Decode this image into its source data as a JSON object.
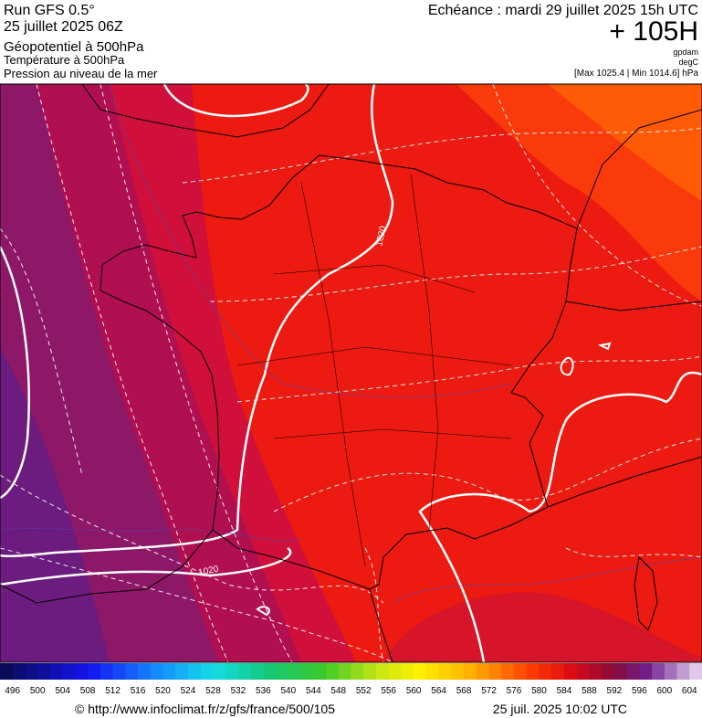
{
  "header": {
    "run": "Run GFS 0.5°",
    "date": "25 juillet 2025 06Z",
    "title": "Géopotentiel à 500hPa",
    "subtitle1": "Température à 500hPa",
    "subtitle2": "Pression au niveau de la mer",
    "echeance": "Echéance : mardi 29 juillet 2025 15h UTC",
    "lead": "+ 105H",
    "unit1": "gpdam",
    "unit2": "degC",
    "range": "[Max 1025.4 | Min 1014.6] hPa"
  },
  "map": {
    "isobar_labels": [
      "1020",
      "1020"
    ]
  },
  "colorbar": {
    "labels": [
      496,
      500,
      504,
      508,
      512,
      516,
      520,
      524,
      528,
      532,
      536,
      540,
      544,
      548,
      552,
      556,
      560,
      564,
      568,
      572,
      576,
      580,
      584,
      588,
      592,
      596,
      600,
      604
    ]
  },
  "footer": {
    "url": "© http://www.infoclimat.fr/z/gfs/france/500/105",
    "timestamp": "25 juil. 2025 10:02 UTC"
  }
}
